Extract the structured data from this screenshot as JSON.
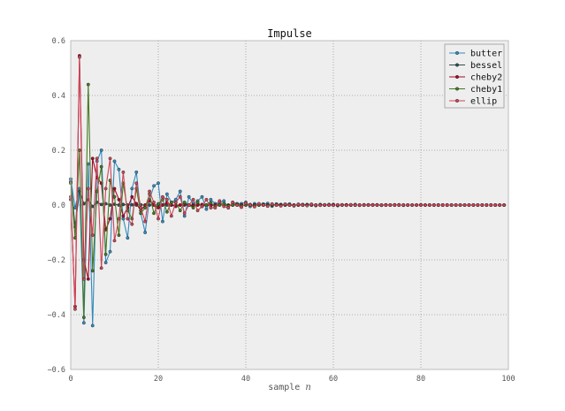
{
  "chart_data": {
    "type": "line",
    "title": "Impulse",
    "xlabel": "sample",
    "xlabel_symbol": "n",
    "ylabel": "",
    "xlim": [
      0,
      100
    ],
    "ylim": [
      -0.6,
      0.6
    ],
    "xticks": [
      "0",
      "20",
      "40",
      "60",
      "80",
      "100"
    ],
    "yticks": [
      "0.6",
      "0.4",
      "0.2",
      "0.0",
      "−0.2",
      "−0.4",
      "−0.6"
    ],
    "grid": true,
    "legend_position": "top-right",
    "n_samples": 100,
    "series": [
      {
        "name": "butter",
        "color": "#348abd",
        "values": [
          0.095,
          -0.01,
          0.06,
          -0.43,
          0.15,
          -0.44,
          0.16,
          0.2,
          -0.21,
          -0.17,
          0.16,
          0.13,
          -0.05,
          -0.12,
          0.06,
          0.12,
          -0.03,
          -0.1,
          0.02,
          0.07,
          0.08,
          -0.06,
          0.04,
          0.01,
          0.02,
          0.05,
          -0.04,
          0.03,
          0.005,
          0.015,
          0.03,
          -0.015,
          0.02,
          0.005,
          0.01,
          0.015,
          -0.01,
          0.01,
          0.005,
          0.005,
          0.01,
          -0.005,
          0.005,
          0.003,
          0.004,
          0.006,
          -0.004,
          0.004,
          0.002,
          0.003,
          0.004,
          -0.003,
          0.003,
          0.002,
          0.002,
          0.003,
          -0.002,
          0.002,
          0.001,
          0.002,
          0.002,
          -0.002,
          0.001,
          0.001,
          0.001,
          0.002,
          -0.001,
          0.001,
          0.001,
          0.001,
          0.001,
          -0.001,
          0.001,
          0.0,
          0.001,
          0.001,
          -0.001,
          0.0,
          0.0,
          0.0,
          0.001,
          0.0,
          0.0,
          0.0,
          0.0,
          0.0,
          0.0,
          0.0,
          0.0,
          0.0,
          0.0,
          0.0,
          0.0,
          0.0,
          0.0,
          0.0,
          0.0,
          0.0,
          0.0,
          0.0
        ]
      },
      {
        "name": "bessel",
        "color": "#2f4f4f",
        "values": [
          0.085,
          -0.08,
          0.05,
          0.005,
          0.02,
          -0.005,
          0.01,
          0.002,
          0.005,
          0.0,
          0.003,
          0.0,
          0.002,
          0.0,
          0.001,
          0.0,
          0.001,
          0.0,
          0.0,
          0.0,
          0.0,
          0.0,
          0.0,
          0.0,
          0.0,
          0.0,
          0.0,
          0.0,
          0.0,
          0.0,
          0.0,
          0.0,
          0.0,
          0.0,
          0.0,
          0.0,
          0.0,
          0.0,
          0.0,
          0.0,
          0.0,
          0.0,
          0.0,
          0.0,
          0.0,
          0.0,
          0.0,
          0.0,
          0.0,
          0.0,
          0.0,
          0.0,
          0.0,
          0.0,
          0.0,
          0.0,
          0.0,
          0.0,
          0.0,
          0.0,
          0.0,
          0.0,
          0.0,
          0.0,
          0.0,
          0.0,
          0.0,
          0.0,
          0.0,
          0.0,
          0.0,
          0.0,
          0.0,
          0.0,
          0.0,
          0.0,
          0.0,
          0.0,
          0.0,
          0.0,
          0.0,
          0.0,
          0.0,
          0.0,
          0.0,
          0.0,
          0.0,
          0.0,
          0.0,
          0.0,
          0.0,
          0.0,
          0.0,
          0.0,
          0.0,
          0.0,
          0.0,
          0.0,
          0.0,
          0.0
        ]
      },
      {
        "name": "cheby2",
        "color": "#a60628",
        "values": [
          0.02,
          -0.37,
          0.545,
          -0.2,
          -0.27,
          0.17,
          0.1,
          0.08,
          -0.09,
          -0.05,
          0.06,
          0.02,
          -0.04,
          -0.01,
          0.03,
          0.005,
          -0.02,
          0.0,
          0.015,
          0.0,
          -0.01,
          0.0,
          0.008,
          0.0,
          -0.005,
          0.0,
          0.004,
          0.0,
          -0.003,
          0.0,
          0.002,
          0.0,
          -0.002,
          0.0,
          0.001,
          0.0,
          -0.001,
          0.0,
          0.001,
          0.0,
          0.0,
          0.0,
          0.0,
          0.0,
          0.0,
          0.0,
          0.0,
          0.0,
          0.0,
          0.0,
          0.0,
          0.0,
          0.0,
          0.0,
          0.0,
          0.0,
          0.0,
          0.0,
          0.0,
          0.0,
          0.0,
          0.0,
          0.0,
          0.0,
          0.0,
          0.0,
          0.0,
          0.0,
          0.0,
          0.0,
          0.0,
          0.0,
          0.0,
          0.0,
          0.0,
          0.0,
          0.0,
          0.0,
          0.0,
          0.0,
          0.0,
          0.0,
          0.0,
          0.0,
          0.0,
          0.0,
          0.0,
          0.0,
          0.0,
          0.0,
          0.0,
          0.0,
          0.0,
          0.0,
          0.0,
          0.0,
          0.0,
          0.0,
          0.0,
          0.0
        ]
      },
      {
        "name": "cheby1",
        "color": "#467821",
        "values": [
          0.08,
          -0.12,
          0.2,
          -0.41,
          0.44,
          -0.24,
          0.05,
          0.14,
          -0.18,
          0.09,
          0.03,
          -0.11,
          0.08,
          -0.02,
          -0.05,
          0.06,
          -0.03,
          -0.01,
          0.04,
          -0.03,
          0.005,
          0.02,
          -0.025,
          0.01,
          0.01,
          -0.02,
          0.01,
          0.0,
          -0.01,
          0.01,
          -0.005,
          0.0,
          0.008,
          -0.005,
          0.0,
          0.005,
          -0.004,
          0.0,
          0.003,
          -0.003,
          0.0,
          0.002,
          -0.002,
          0.0,
          0.001,
          -0.001,
          0.0,
          0.001,
          -0.001,
          0.0,
          0.0,
          0.0,
          0.0,
          0.0,
          0.0,
          0.0,
          0.0,
          0.0,
          0.0,
          0.0,
          0.0,
          0.0,
          0.0,
          0.0,
          0.0,
          0.0,
          0.0,
          0.0,
          0.0,
          0.0,
          0.0,
          0.0,
          0.0,
          0.0,
          0.0,
          0.0,
          0.0,
          0.0,
          0.0,
          0.0,
          0.0,
          0.0,
          0.0,
          0.0,
          0.0,
          0.0,
          0.0,
          0.0,
          0.0,
          0.0,
          0.0,
          0.0,
          0.0,
          0.0,
          0.0,
          0.0,
          0.0,
          0.0,
          0.0,
          0.0
        ]
      },
      {
        "name": "ellip",
        "color": "#cf4457",
        "values": [
          0.03,
          -0.38,
          0.54,
          -0.27,
          0.06,
          -0.11,
          0.17,
          -0.23,
          0.06,
          0.17,
          -0.13,
          -0.05,
          0.12,
          -0.05,
          -0.07,
          0.08,
          -0.01,
          -0.06,
          0.05,
          0.01,
          -0.05,
          0.03,
          0.02,
          -0.04,
          0.01,
          0.03,
          -0.03,
          0.0,
          0.02,
          -0.02,
          -0.005,
          0.02,
          -0.01,
          -0.01,
          0.015,
          -0.005,
          -0.01,
          0.01,
          0.0,
          -0.008,
          0.007,
          0.0,
          -0.006,
          0.005,
          0.0,
          -0.004,
          0.004,
          0.0,
          -0.003,
          0.003,
          0.0,
          -0.002,
          0.002,
          0.0,
          -0.002,
          0.002,
          0.0,
          -0.001,
          0.001,
          0.0,
          -0.001,
          0.001,
          0.0,
          -0.001,
          0.001,
          0.0,
          0.0,
          0.0,
          0.0,
          0.0,
          0.0,
          0.0,
          0.0,
          0.0,
          0.0,
          0.0,
          0.0,
          0.0,
          0.0,
          0.0,
          0.0,
          0.0,
          0.0,
          0.0,
          0.0,
          0.0,
          0.0,
          0.0,
          0.0,
          0.0,
          0.0,
          0.0,
          0.0,
          0.0,
          0.0,
          0.0,
          0.0,
          0.0,
          0.0,
          0.0
        ]
      }
    ]
  },
  "colors": {
    "plot_background": "#eeeeee",
    "grid": "#999999",
    "axes_edge": "#bcbcbc"
  }
}
